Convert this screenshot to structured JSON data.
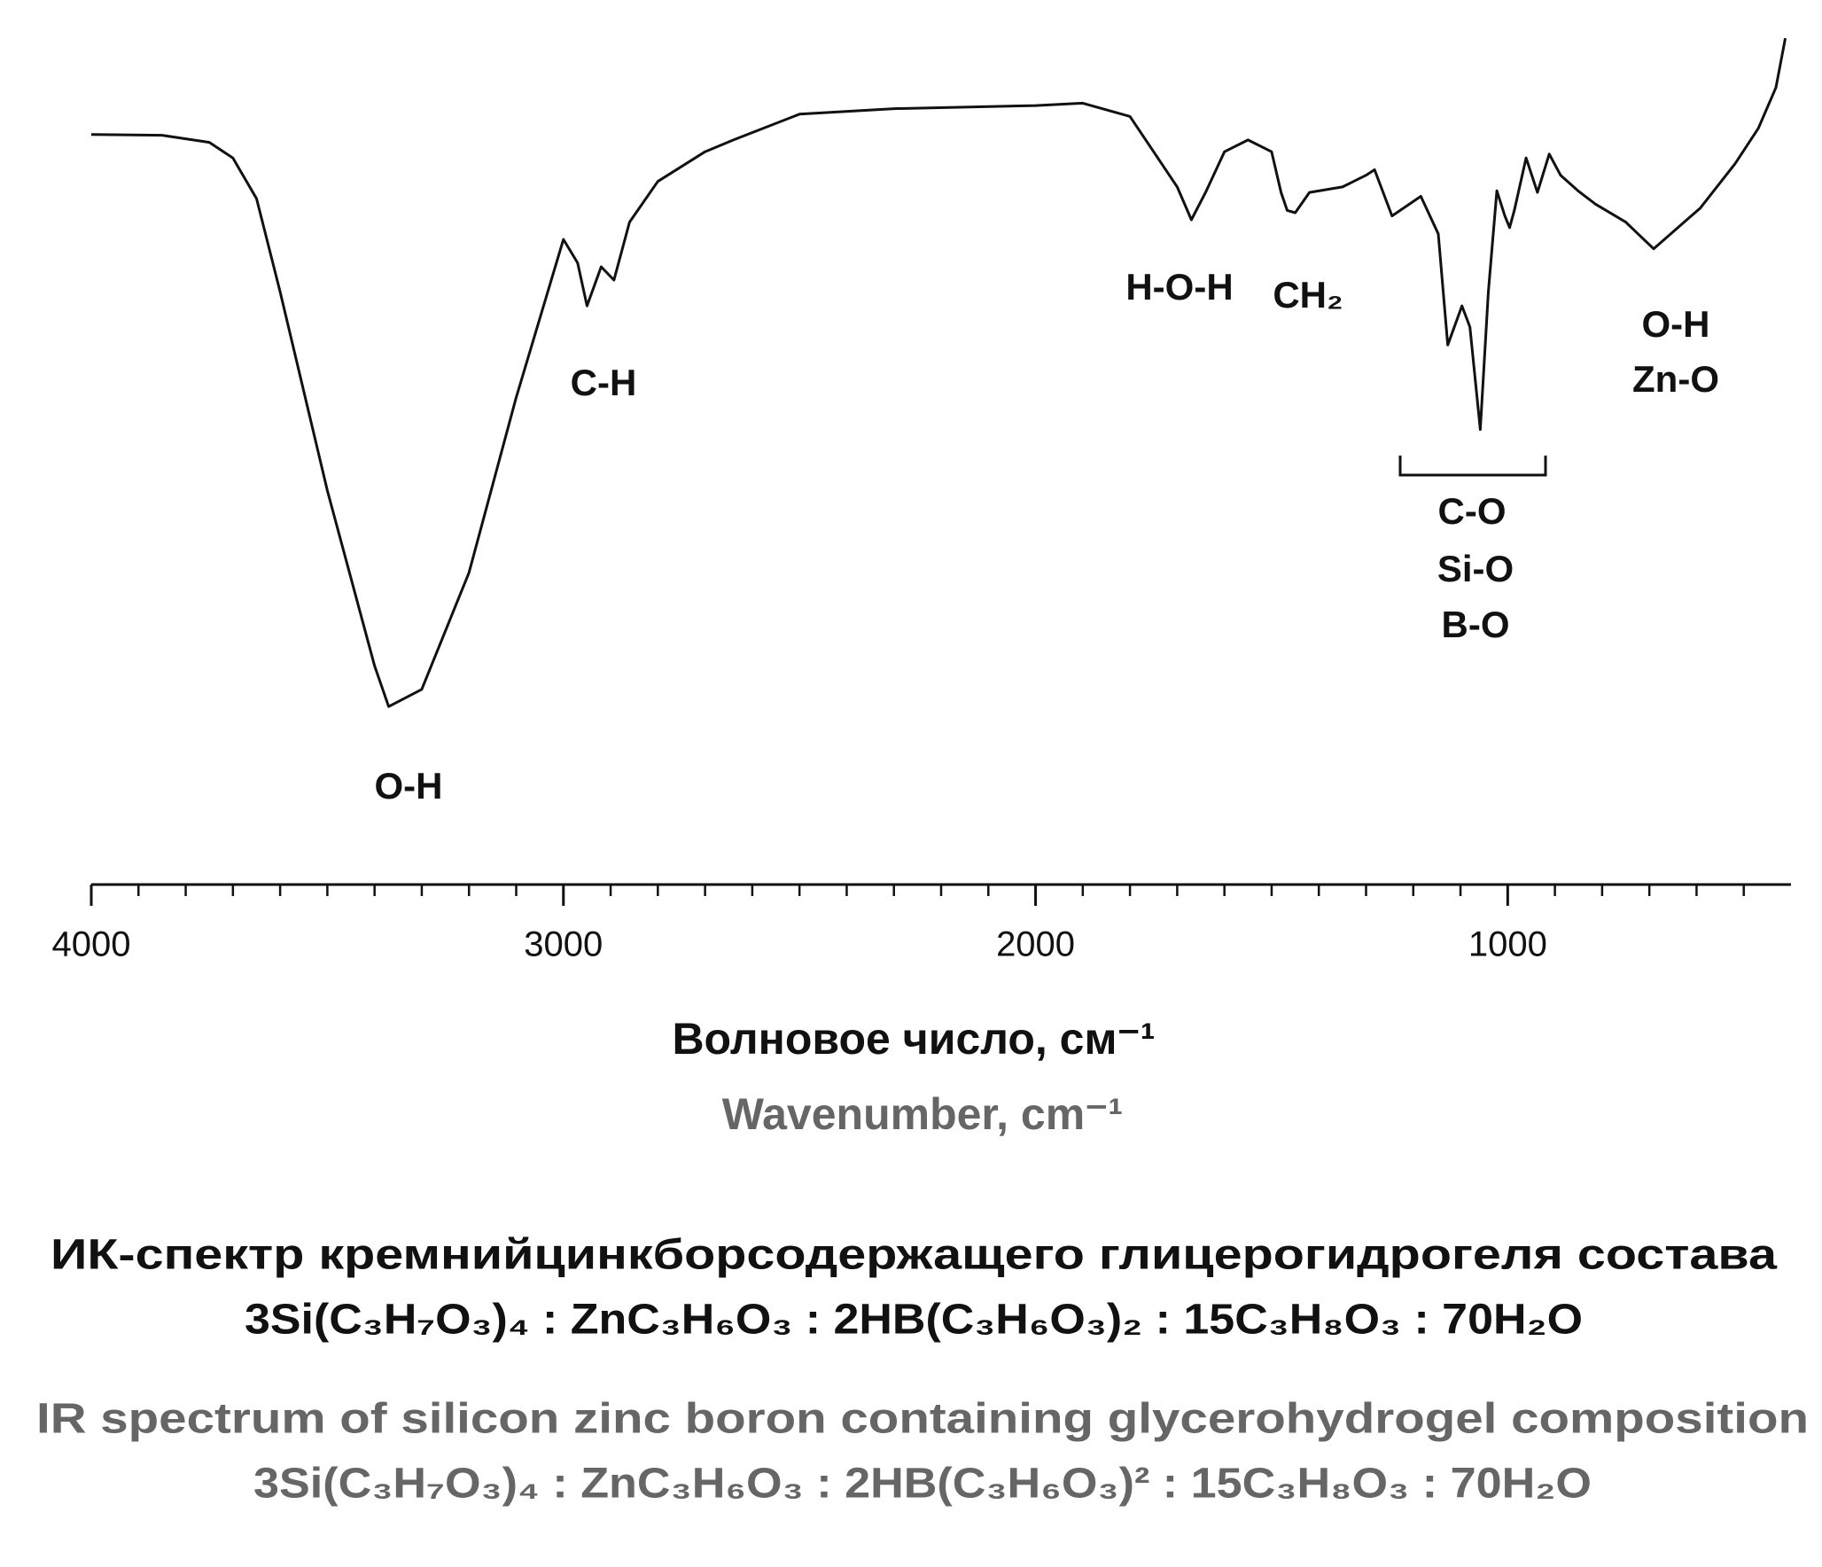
{
  "chart_data": {
    "type": "line",
    "x_label": "Волновое число, см⁻¹",
    "x_label_en": "Wavenumber, cm⁻¹",
    "caption": [
      "ИК-спектр кремнийцинкборсодержащего глицерогидрогеля состава",
      "3Si(C₃H₇O₃)₄ : ZnC₃H₆O₃ : 2HB(C₃H₆O₃)₂ : 15C₃H₈O₃ : 70H₂O"
    ],
    "caption_en": [
      "IR spectrum of silicon zinc boron containing glycerohydrogel composition",
      "3Si(C₃H₇O₃)₄ : ZnC₃H₆O₃ : 2HB(C₃H₆O₃)² : 15C₃H₈O₃ : 70H₂O"
    ],
    "xlim": [
      4000,
      400
    ],
    "xticks": [
      4000,
      3000,
      2000,
      1000
    ],
    "xminorticks": [
      3900,
      3800,
      3700,
      3600,
      3500,
      3400,
      3300,
      3200,
      3100,
      2900,
      2800,
      2700,
      2600,
      2500,
      2400,
      2300,
      2200,
      2100,
      1900,
      1800,
      1700,
      1600,
      1500,
      1400,
      1300,
      1200,
      1100,
      900,
      800,
      700,
      600,
      500
    ],
    "ylim": [
      0,
      100
    ],
    "series": [
      {
        "color": "#111111",
        "x": [
          4000,
          3850,
          3750,
          3700,
          3650,
          3600,
          3500,
          3400,
          3370,
          3300,
          3200,
          3100,
          3000,
          2970,
          2950,
          2920,
          2893,
          2860,
          2800,
          2700,
          2640,
          2500,
          2300,
          2000,
          1900,
          1800,
          1750,
          1700,
          1670,
          1640,
          1600,
          1550,
          1500,
          1480,
          1467,
          1450,
          1420,
          1350,
          1300,
          1282,
          1245,
          1184,
          1147,
          1127,
          1097,
          1080,
          1058,
          1041,
          1023,
          1006,
          996,
          986,
          961,
          937,
          912,
          888,
          851,
          814,
          750,
          691,
          592,
          518,
          469,
          432,
          412
        ],
        "values": [
          87.3,
          87.2,
          86.3,
          84.3,
          79.1,
          67.2,
          41.8,
          19.4,
          14.2,
          16.4,
          31.3,
          53.7,
          73.9,
          70.9,
          65.4,
          70.4,
          68.7,
          76.1,
          81.3,
          85.1,
          86.6,
          89.9,
          90.6,
          91.0,
          91.3,
          89.6,
          85.1,
          80.6,
          76.4,
          79.9,
          85.1,
          86.6,
          85.1,
          79.9,
          77.6,
          77.3,
          79.9,
          80.6,
          82.1,
          82.8,
          76.9,
          79.4,
          74.6,
          60.4,
          65.4,
          62.7,
          49.6,
          67.2,
          80.1,
          76.9,
          75.4,
          77.6,
          84.3,
          79.9,
          84.8,
          82.1,
          80.1,
          78.4,
          76.1,
          72.7,
          77.9,
          83.6,
          88.1,
          93.3,
          99.6
        ]
      }
    ],
    "annotations": [
      {
        "text": "O-H"
      },
      {
        "text": "C-H"
      },
      {
        "text": "H-O-H"
      },
      {
        "text": "CH₂"
      },
      {
        "text": "O-H"
      },
      {
        "text": "Zn-O"
      },
      {
        "text": "C-O"
      },
      {
        "text": "Si-O"
      },
      {
        "text": "B-O"
      }
    ]
  }
}
